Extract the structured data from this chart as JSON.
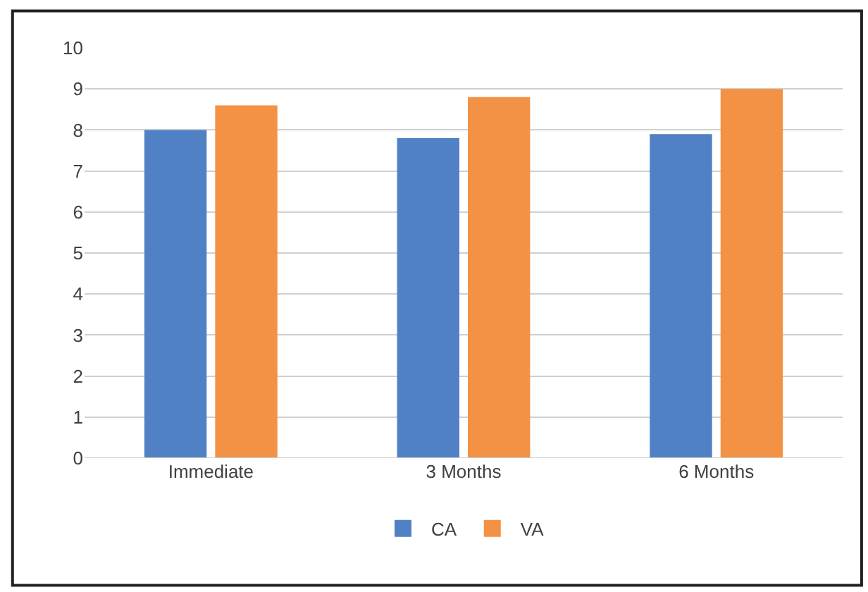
{
  "chart_data": {
    "type": "bar",
    "categories": [
      "Immediate",
      "3 Months",
      "6 Months"
    ],
    "series": [
      {
        "name": "CA",
        "color": "#4f81c4",
        "values": [
          8.0,
          7.8,
          7.9
        ]
      },
      {
        "name": "VA",
        "color": "#f39244",
        "values": [
          8.6,
          8.8,
          9.0
        ]
      }
    ],
    "ylim": [
      0,
      10
    ],
    "yticks": [
      0,
      1,
      2,
      3,
      4,
      5,
      6,
      7,
      8,
      9,
      10
    ],
    "grid": "y",
    "legend": "bottom"
  }
}
